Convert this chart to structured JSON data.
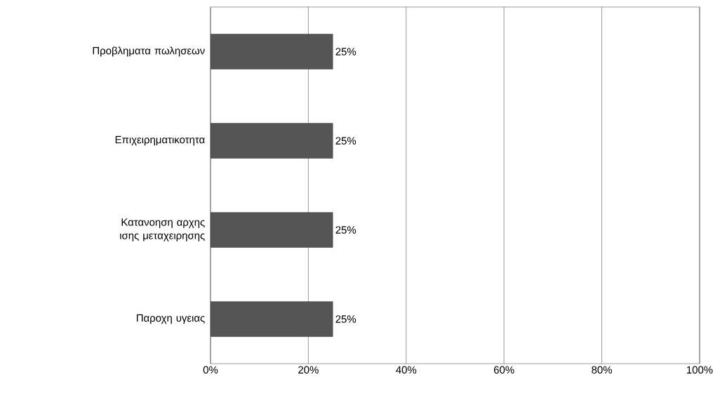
{
  "chart_data": {
    "type": "bar",
    "orientation": "horizontal",
    "categories": [
      "Προβληματα πωλησεων",
      "Επιχειρηματικοτητα",
      "Κατανοηση αρχης ισης μεταχειρησης",
      "Παροχη υγειας"
    ],
    "values": [
      25,
      25,
      25,
      25
    ],
    "value_labels": [
      "25%",
      "25%",
      "25%",
      "25%"
    ],
    "color": "#555555",
    "xlim": [
      0,
      100
    ],
    "xticks": [
      {
        "value": 0,
        "label": "0%"
      },
      {
        "value": 20,
        "label": "20%"
      },
      {
        "value": 40,
        "label": "40%"
      },
      {
        "value": 60,
        "label": "60%"
      },
      {
        "value": 80,
        "label": "80%"
      },
      {
        "value": 100,
        "label": "100%"
      }
    ],
    "grid": "x"
  }
}
